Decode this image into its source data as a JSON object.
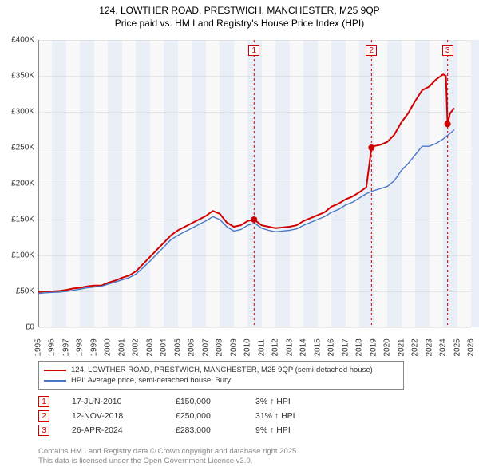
{
  "title_line1": "124, LOWTHER ROAD, PRESTWICH, MANCHESTER, M25 9QP",
  "title_line2": "Price paid vs. HM Land Registry's House Price Index (HPI)",
  "chart": {
    "type": "line",
    "background_color": "#f8f8f8",
    "band_color": "#eaeff7",
    "grid_color": "rgba(128,128,128,0.15)",
    "axis_color": "#888888",
    "tick_font_size": 10,
    "xlim": [
      1995,
      2026
    ],
    "xticks": [
      1995,
      1996,
      1997,
      1998,
      1999,
      2000,
      2001,
      2002,
      2003,
      2004,
      2005,
      2006,
      2007,
      2008,
      2009,
      2010,
      2011,
      2012,
      2013,
      2014,
      2015,
      2016,
      2017,
      2018,
      2019,
      2020,
      2021,
      2022,
      2023,
      2024,
      2025,
      2026
    ],
    "ylim": [
      0,
      400000
    ],
    "yticks": [
      {
        "v": 0,
        "label": "£0"
      },
      {
        "v": 50000,
        "label": "£50K"
      },
      {
        "v": 100000,
        "label": "£100K"
      },
      {
        "v": 150000,
        "label": "£150K"
      },
      {
        "v": 200000,
        "label": "£200K"
      },
      {
        "v": 250000,
        "label": "£250K"
      },
      {
        "v": 300000,
        "label": "£300K"
      },
      {
        "v": 350000,
        "label": "£350K"
      },
      {
        "v": 400000,
        "label": "£400K"
      }
    ],
    "series": [
      {
        "name": "124, LOWTHER ROAD, PRESTWICH, MANCHESTER, M25 9QP (semi-detached house)",
        "color": "#d00000",
        "line_width": 2.0,
        "data": [
          [
            1995.0,
            49000
          ],
          [
            1995.5,
            50000
          ],
          [
            1996.0,
            50000
          ],
          [
            1996.5,
            50500
          ],
          [
            1997.0,
            52000
          ],
          [
            1997.5,
            54000
          ],
          [
            1998.0,
            55000
          ],
          [
            1998.5,
            57000
          ],
          [
            1999.0,
            58000
          ],
          [
            1999.5,
            58000
          ],
          [
            2000.0,
            62000
          ],
          [
            2000.5,
            65000
          ],
          [
            2001.0,
            69000
          ],
          [
            2001.5,
            72000
          ],
          [
            2002.0,
            78000
          ],
          [
            2002.5,
            88000
          ],
          [
            2003.0,
            98000
          ],
          [
            2003.5,
            108000
          ],
          [
            2004.0,
            118000
          ],
          [
            2004.5,
            128000
          ],
          [
            2005.0,
            135000
          ],
          [
            2005.5,
            140000
          ],
          [
            2006.0,
            145000
          ],
          [
            2006.5,
            150000
          ],
          [
            2007.0,
            155000
          ],
          [
            2007.5,
            162000
          ],
          [
            2008.0,
            158000
          ],
          [
            2008.5,
            146000
          ],
          [
            2009.0,
            140000
          ],
          [
            2009.5,
            142000
          ],
          [
            2010.0,
            148000
          ],
          [
            2010.46,
            150000
          ],
          [
            2011.0,
            142000
          ],
          [
            2011.5,
            140000
          ],
          [
            2012.0,
            138000
          ],
          [
            2012.5,
            139000
          ],
          [
            2013.0,
            140000
          ],
          [
            2013.5,
            142000
          ],
          [
            2014.0,
            148000
          ],
          [
            2014.5,
            152000
          ],
          [
            2015.0,
            156000
          ],
          [
            2015.5,
            160000
          ],
          [
            2016.0,
            168000
          ],
          [
            2016.5,
            172000
          ],
          [
            2017.0,
            178000
          ],
          [
            2017.5,
            182000
          ],
          [
            2018.0,
            188000
          ],
          [
            2018.5,
            195000
          ],
          [
            2018.87,
            250000
          ],
          [
            2019.0,
            252000
          ],
          [
            2019.5,
            254000
          ],
          [
            2020.0,
            258000
          ],
          [
            2020.5,
            268000
          ],
          [
            2021.0,
            285000
          ],
          [
            2021.5,
            298000
          ],
          [
            2022.0,
            315000
          ],
          [
            2022.5,
            330000
          ],
          [
            2023.0,
            335000
          ],
          [
            2023.5,
            345000
          ],
          [
            2024.0,
            352000
          ],
          [
            2024.2,
            350000
          ],
          [
            2024.32,
            283000
          ],
          [
            2024.5,
            298000
          ],
          [
            2024.8,
            305000
          ]
        ]
      },
      {
        "name": "HPI: Average price, semi-detached house, Bury",
        "color": "#4a78c8",
        "line_width": 1.4,
        "data": [
          [
            1995.0,
            47000
          ],
          [
            1995.5,
            48000
          ],
          [
            1996.0,
            48500
          ],
          [
            1996.5,
            49000
          ],
          [
            1997.0,
            50000
          ],
          [
            1997.5,
            51500
          ],
          [
            1998.0,
            53000
          ],
          [
            1998.5,
            55000
          ],
          [
            1999.0,
            56000
          ],
          [
            1999.5,
            57000
          ],
          [
            2000.0,
            60000
          ],
          [
            2000.5,
            63000
          ],
          [
            2001.0,
            66000
          ],
          [
            2001.5,
            69000
          ],
          [
            2002.0,
            74000
          ],
          [
            2002.5,
            83000
          ],
          [
            2003.0,
            92000
          ],
          [
            2003.5,
            102000
          ],
          [
            2004.0,
            112000
          ],
          [
            2004.5,
            122000
          ],
          [
            2005.0,
            128000
          ],
          [
            2005.5,
            133000
          ],
          [
            2006.0,
            138000
          ],
          [
            2006.5,
            143000
          ],
          [
            2007.0,
            148000
          ],
          [
            2007.5,
            154000
          ],
          [
            2008.0,
            150000
          ],
          [
            2008.5,
            140000
          ],
          [
            2009.0,
            134000
          ],
          [
            2009.5,
            136000
          ],
          [
            2010.0,
            142000
          ],
          [
            2010.5,
            145000
          ],
          [
            2011.0,
            138000
          ],
          [
            2011.5,
            135000
          ],
          [
            2012.0,
            133000
          ],
          [
            2012.5,
            134000
          ],
          [
            2013.0,
            135000
          ],
          [
            2013.5,
            137000
          ],
          [
            2014.0,
            142000
          ],
          [
            2014.5,
            146000
          ],
          [
            2015.0,
            150000
          ],
          [
            2015.5,
            154000
          ],
          [
            2016.0,
            160000
          ],
          [
            2016.5,
            164000
          ],
          [
            2017.0,
            170000
          ],
          [
            2017.5,
            174000
          ],
          [
            2018.0,
            180000
          ],
          [
            2018.5,
            186000
          ],
          [
            2019.0,
            190000
          ],
          [
            2019.5,
            193000
          ],
          [
            2020.0,
            196000
          ],
          [
            2020.5,
            204000
          ],
          [
            2021.0,
            218000
          ],
          [
            2021.5,
            228000
          ],
          [
            2022.0,
            240000
          ],
          [
            2022.5,
            252000
          ],
          [
            2023.0,
            252000
          ],
          [
            2023.5,
            256000
          ],
          [
            2024.0,
            262000
          ],
          [
            2024.5,
            270000
          ],
          [
            2024.8,
            275000
          ]
        ]
      }
    ],
    "markers": [
      {
        "n": "1",
        "x": 2010.46,
        "y": 150000,
        "color": "#d00000"
      },
      {
        "n": "2",
        "x": 2018.87,
        "y": 250000,
        "color": "#d00000"
      },
      {
        "n": "3",
        "x": 2024.32,
        "y": 283000,
        "color": "#d00000"
      }
    ]
  },
  "legend": {
    "border_color": "#888888",
    "items": [
      {
        "color": "#d00000",
        "label": "124, LOWTHER ROAD, PRESTWICH, MANCHESTER, M25 9QP (semi-detached house)"
      },
      {
        "color": "#4a78c8",
        "label": "HPI: Average price, semi-detached house, Bury"
      }
    ]
  },
  "events": [
    {
      "n": "1",
      "date": "17-JUN-2010",
      "price": "£150,000",
      "pct": "3% ↑ HPI"
    },
    {
      "n": "2",
      "date": "12-NOV-2018",
      "price": "£250,000",
      "pct": "31% ↑ HPI"
    },
    {
      "n": "3",
      "date": "26-APR-2024",
      "price": "£283,000",
      "pct": "9% ↑ HPI"
    }
  ],
  "footer_line1": "Contains HM Land Registry data © Crown copyright and database right 2025.",
  "footer_line2": "This data is licensed under the Open Government Licence v3.0."
}
